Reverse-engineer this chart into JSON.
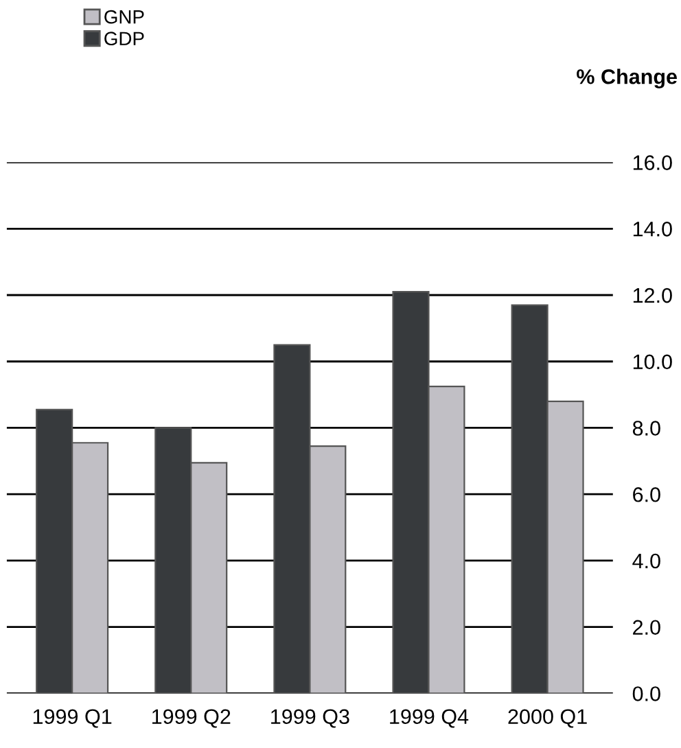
{
  "chart_data": {
    "type": "bar",
    "ylabel": "% Change",
    "categories": [
      "1999 Q1",
      "1999 Q2",
      "1999 Q3",
      "1999 Q4",
      "2000 Q1"
    ],
    "series": [
      {
        "name": "GDP",
        "color": "#373a3d",
        "values": [
          8.55,
          8.0,
          10.5,
          12.1,
          11.7
        ]
      },
      {
        "name": "GNP",
        "color": "#c1bfc5",
        "values": [
          7.55,
          6.95,
          7.45,
          9.25,
          8.8
        ]
      }
    ],
    "ylim": [
      0,
      16
    ],
    "yticks": [
      {
        "value": 0,
        "label": "0.0"
      },
      {
        "value": 2,
        "label": "2.0"
      },
      {
        "value": 4,
        "label": "4.0"
      },
      {
        "value": 6,
        "label": "6.0"
      },
      {
        "value": 8,
        "label": "8.0"
      },
      {
        "value": 10,
        "label": "10.0"
      },
      {
        "value": 12,
        "label": "12.0"
      },
      {
        "value": 14,
        "label": "14.0"
      },
      {
        "value": 16,
        "label": "16.0"
      }
    ],
    "grid": "y",
    "legend": "top left"
  }
}
